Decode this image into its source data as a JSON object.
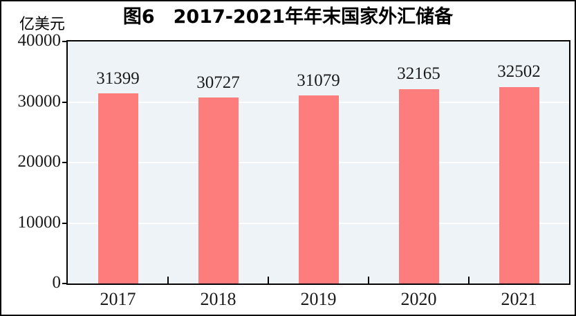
{
  "chart_data": {
    "type": "bar",
    "title": "图6　2017-2021年年末国家外汇储备",
    "ylabel": "亿美元",
    "xlabel": "",
    "categories": [
      "2017",
      "2018",
      "2019",
      "2020",
      "2021"
    ],
    "values": [
      31399,
      30727,
      31079,
      32165,
      32502
    ],
    "ylim": [
      0,
      40000
    ],
    "yticks": [
      0,
      10000,
      20000,
      30000,
      40000
    ],
    "bar_color": "#FD7D7D",
    "plot_bg": "#EDF3F7",
    "grid": true,
    "gridline_color": "#FFFFFF",
    "legend": "none",
    "value_labels_shown": true
  }
}
